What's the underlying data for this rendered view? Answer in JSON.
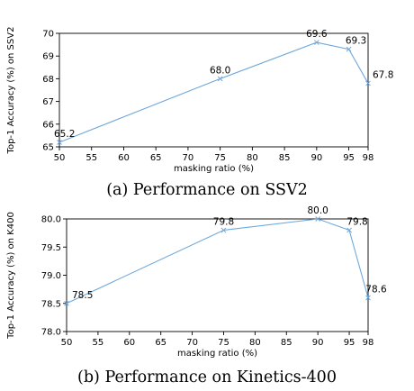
{
  "chart_data": [
    {
      "type": "line",
      "caption": "(a) Performance on SSV2",
      "xlabel": "masking ratio (%)",
      "ylabel": "Top-1 Accuracy (%) on SSV2",
      "xlim": [
        50,
        98
      ],
      "ylim": [
        65,
        70
      ],
      "x_ticks": [
        50,
        55,
        60,
        65,
        70,
        75,
        80,
        85,
        90,
        95,
        98
      ],
      "y_ticks": [
        65,
        66,
        67,
        68,
        69,
        70
      ],
      "y_tick_labels": [
        "65",
        "66",
        "67",
        "68",
        "69",
        "70"
      ],
      "grid": false,
      "series": [
        {
          "color": "#6fa8dc",
          "x": [
            50,
            75,
            90,
            95,
            98
          ],
          "y": [
            65.2,
            68.0,
            69.6,
            69.3,
            67.8
          ],
          "labels": [
            "65.2",
            "68.0",
            "69.6",
            "69.3",
            "67.8"
          ]
        }
      ]
    },
    {
      "type": "line",
      "caption": "(b) Performance on Kinetics-400",
      "xlabel": "masking ratio (%)",
      "ylabel": "Top-1 Accuracy (%) on K400",
      "xlim": [
        50,
        98
      ],
      "ylim": [
        78.0,
        80.0
      ],
      "x_ticks": [
        50,
        55,
        60,
        65,
        70,
        75,
        80,
        85,
        90,
        95,
        98
      ],
      "y_ticks": [
        78.0,
        78.5,
        79.0,
        79.5,
        80.0
      ],
      "y_tick_labels": [
        "78.0",
        "78.5",
        "79.0",
        "79.5",
        "80.0"
      ],
      "grid": false,
      "series": [
        {
          "color": "#6fa8dc",
          "x": [
            50,
            75,
            90,
            95,
            98
          ],
          "y": [
            78.5,
            79.8,
            80.0,
            79.8,
            78.6
          ],
          "labels": [
            "78.5",
            "79.8",
            "80.0",
            "79.8",
            "78.6"
          ]
        }
      ]
    }
  ]
}
